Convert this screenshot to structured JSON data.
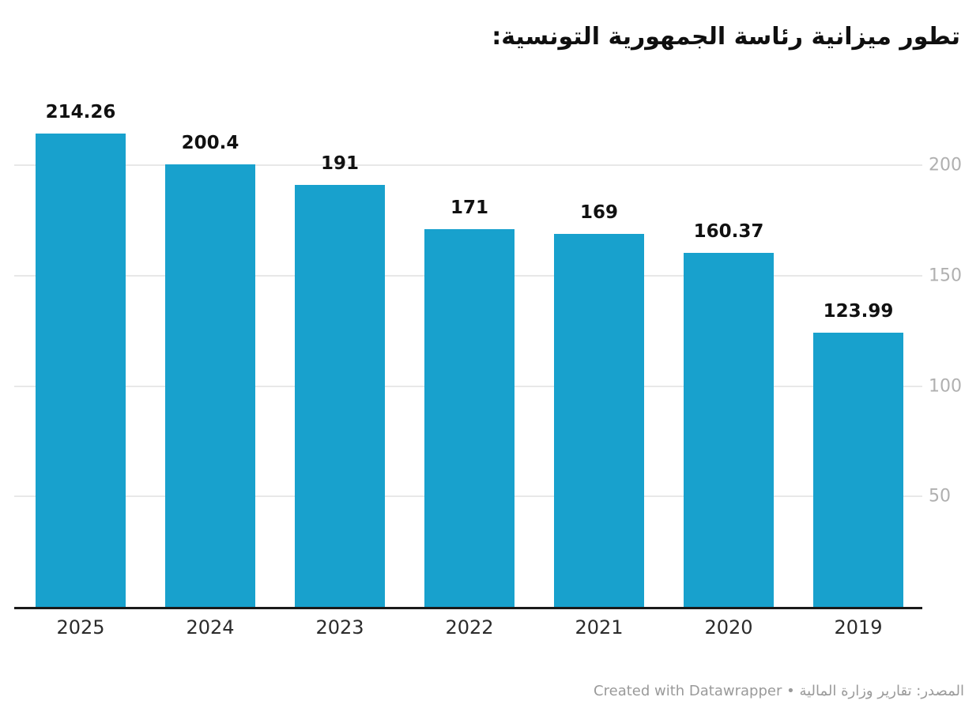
{
  "title": "تطور ميزانية رئاسة الجمهورية التونسية:",
  "footer": {
    "source_label": "المصدر: تقارير وزارة المالية",
    "separator": " • ",
    "credit": "Created with Datawrapper"
  },
  "chart_data": {
    "type": "bar",
    "title": "تطور ميزانية رئاسة الجمهورية التونسية:",
    "categories": [
      "2025",
      "2024",
      "2023",
      "2022",
      "2021",
      "2020",
      "2019"
    ],
    "values": [
      214.26,
      200.4,
      191,
      171,
      169,
      160.37,
      123.99
    ],
    "value_labels": [
      "214.26",
      "200.4",
      "191",
      "171",
      "169",
      "160.37",
      "123.99"
    ],
    "y_ticks": [
      50,
      100,
      150,
      200
    ],
    "y_tick_labels": [
      "50",
      "100",
      "150",
      "200"
    ],
    "ylim": [
      0,
      215
    ],
    "axis_side": "right",
    "grid": "horizontal",
    "legend": "none",
    "xlabel": "",
    "ylabel": ""
  },
  "colors": {
    "bar": "#18a1cd",
    "gridline": "#e8e8e8",
    "axis_line": "#1a1a1a",
    "ytick_label": "#b0b0b0",
    "xtick_label": "#2b2b2b",
    "value_label": "#111111",
    "footer_text": "#9a9a9a",
    "background": "#ffffff"
  }
}
